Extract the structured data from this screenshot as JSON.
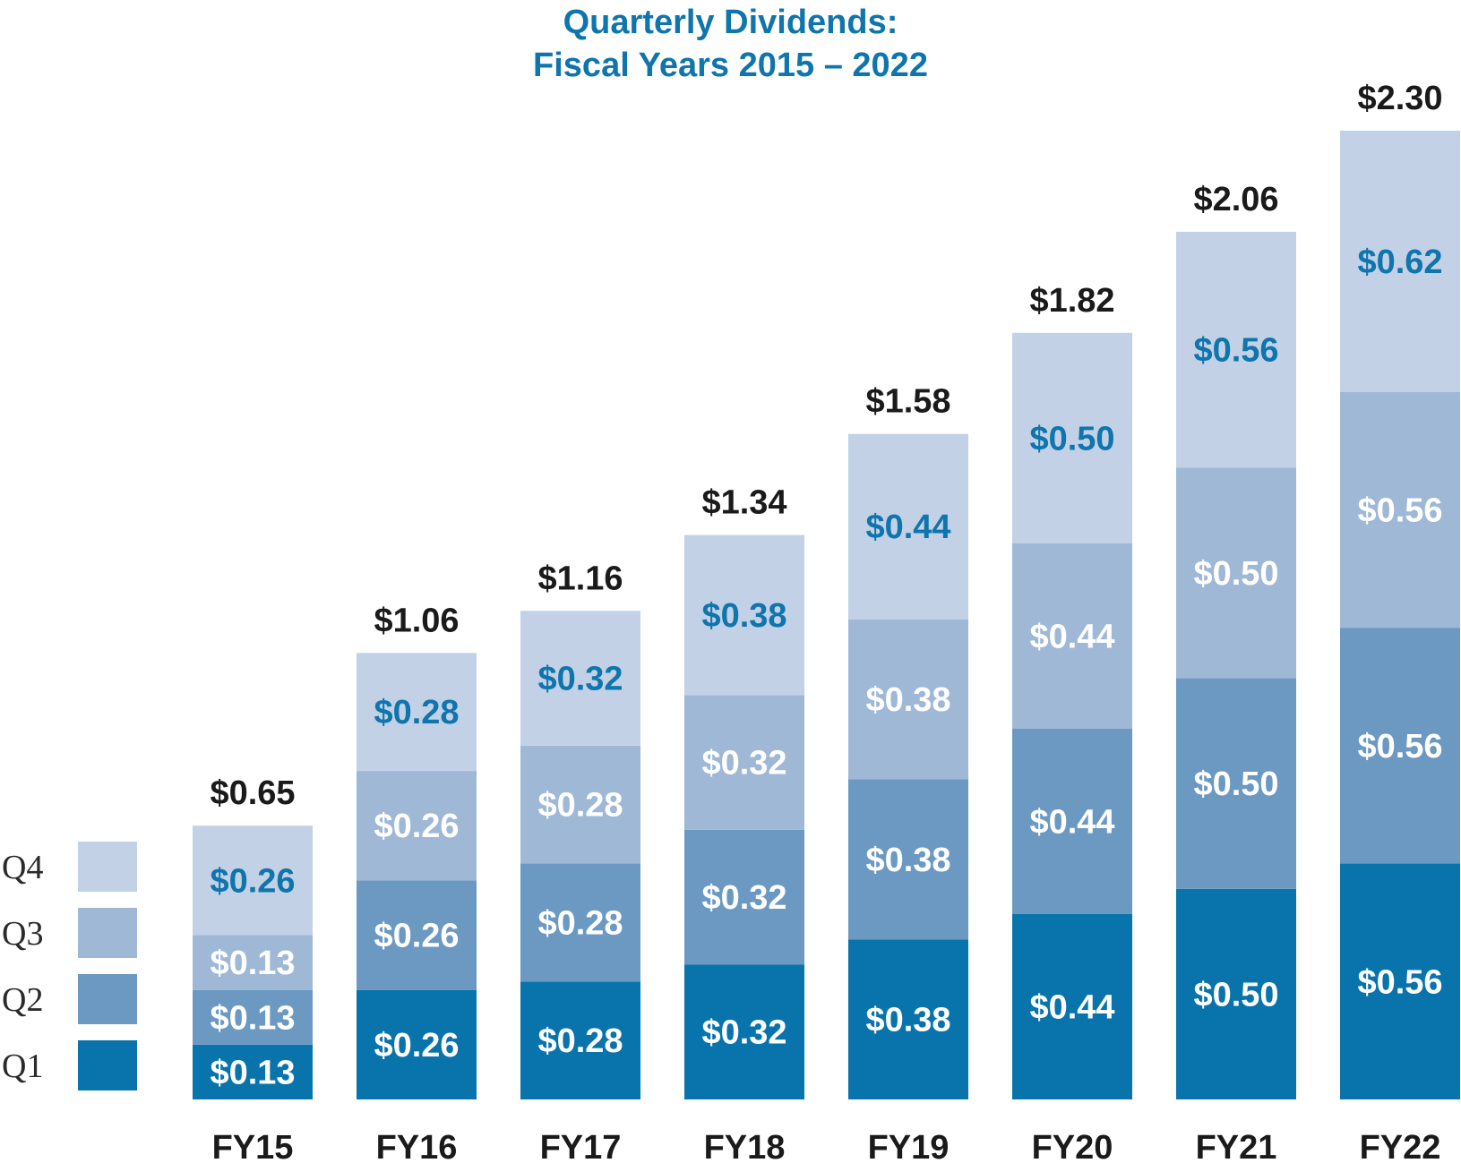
{
  "chart_data": {
    "type": "bar",
    "stacked": true,
    "title": "Quarterly Dividends:",
    "subtitle": "Fiscal Years 2015 – 2022",
    "categories": [
      "FY15",
      "FY16",
      "FY17",
      "FY18",
      "FY19",
      "FY20",
      "FY21",
      "FY22"
    ],
    "series": [
      {
        "name": "Q1",
        "color": "#0874ab",
        "label_color": "#ffffff",
        "values": [
          0.13,
          0.26,
          0.28,
          0.32,
          0.38,
          0.44,
          0.5,
          0.56
        ]
      },
      {
        "name": "Q2",
        "color": "#6b99c2",
        "label_color": "#ffffff",
        "values": [
          0.13,
          0.26,
          0.28,
          0.32,
          0.38,
          0.44,
          0.5,
          0.56
        ]
      },
      {
        "name": "Q3",
        "color": "#9fb8d6",
        "label_color": "#ffffff",
        "values": [
          0.13,
          0.26,
          0.28,
          0.32,
          0.38,
          0.44,
          0.5,
          0.56
        ]
      },
      {
        "name": "Q4",
        "color": "#c2d1e6",
        "label_color": "#0f75ad",
        "values": [
          0.26,
          0.28,
          0.32,
          0.38,
          0.44,
          0.5,
          0.56,
          0.62
        ]
      }
    ],
    "value_labels": [
      [
        "$0.13",
        "$0.26",
        "$0.28",
        "$0.32",
        "$0.38",
        "$0.44",
        "$0.50",
        "$0.56"
      ],
      [
        "$0.13",
        "$0.26",
        "$0.28",
        "$0.32",
        "$0.38",
        "$0.44",
        "$0.50",
        "$0.56"
      ],
      [
        "$0.13",
        "$0.26",
        "$0.28",
        "$0.32",
        "$0.38",
        "$0.44",
        "$0.50",
        "$0.56"
      ],
      [
        "$0.26",
        "$0.28",
        "$0.32",
        "$0.38",
        "$0.44",
        "$0.50",
        "$0.56",
        "$0.62"
      ]
    ],
    "totals": [
      "$0.65",
      "$1.06",
      "$1.16",
      "$1.34",
      "$1.58",
      "$1.82",
      "$2.06",
      "$2.30"
    ],
    "legend_order": [
      "Q4",
      "Q3",
      "Q2",
      "Q1"
    ],
    "legend_position": "left",
    "xlabel": "",
    "ylabel": "",
    "ylim": [
      0,
      2.3
    ],
    "grid": false
  }
}
